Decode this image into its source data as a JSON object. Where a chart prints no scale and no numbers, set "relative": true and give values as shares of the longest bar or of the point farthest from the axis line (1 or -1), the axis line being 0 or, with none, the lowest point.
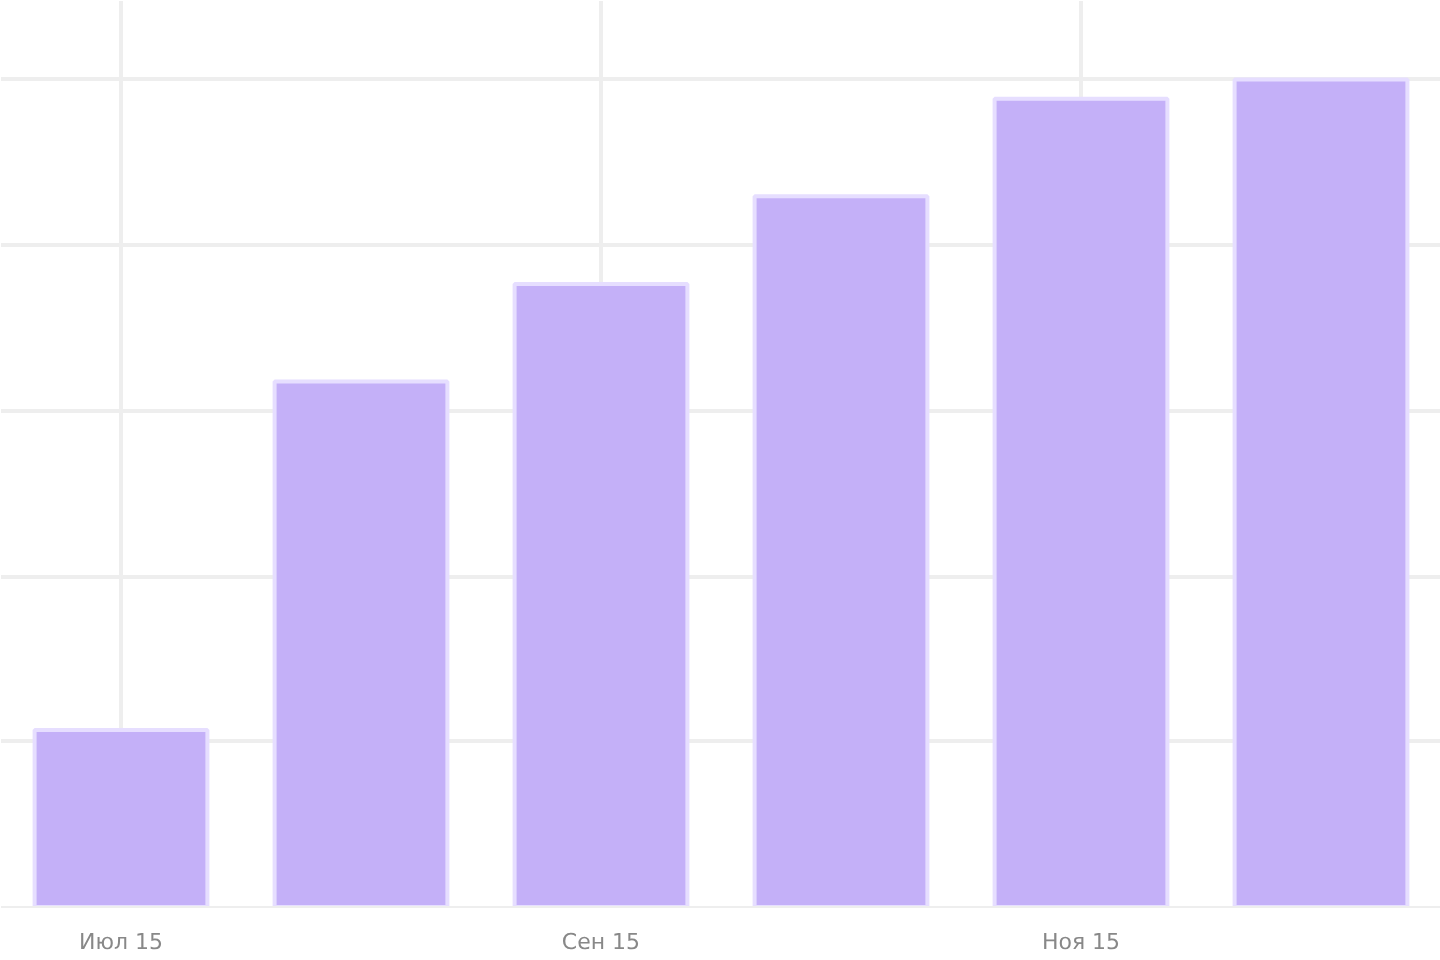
{
  "chart_data": {
    "type": "bar",
    "relative": true,
    "categories": [
      "Июл 15",
      null,
      "Сен 15",
      null,
      "Ноя 15",
      null
    ],
    "values": [
      0.214,
      0.635,
      0.753,
      0.859,
      0.977,
      1
    ],
    "color": "#c4b0f8",
    "grid": true
  }
}
